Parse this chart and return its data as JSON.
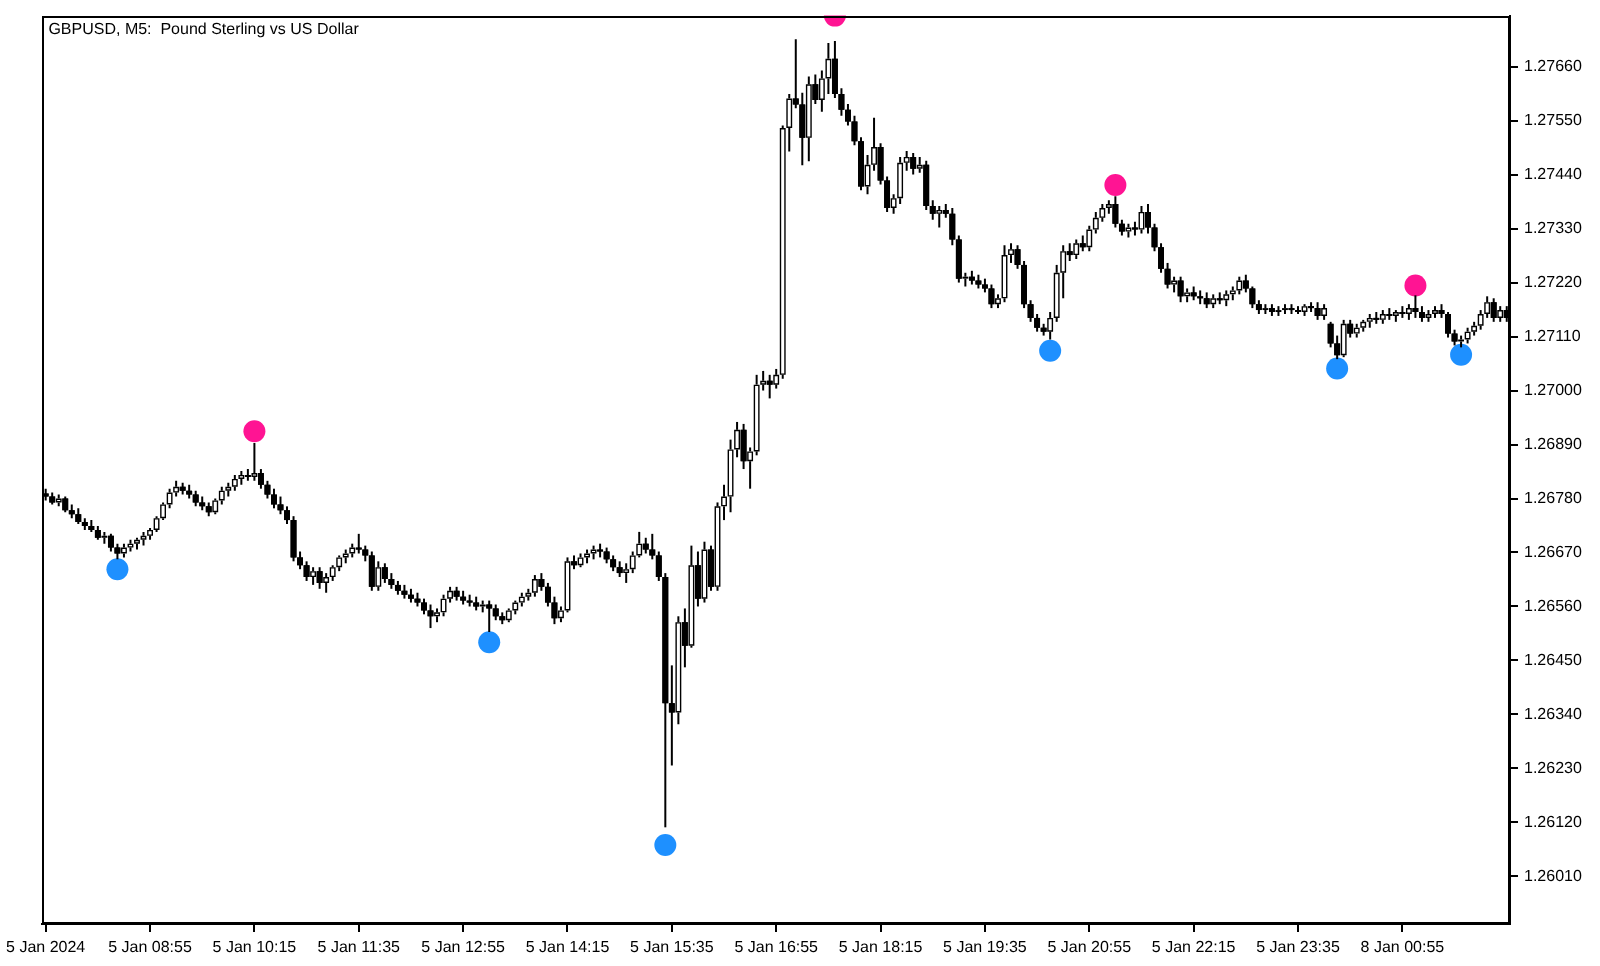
{
  "chart_data": {
    "type": "candlestick",
    "title": "GBPUSD, M5:  Pound Sterling vs US Dollar",
    "categories": [
      "5 Jan 2024",
      null,
      null,
      null,
      null,
      null,
      null,
      null,
      null,
      null,
      null,
      null,
      null,
      null,
      null,
      null,
      "5 Jan 08:55",
      null,
      null,
      null,
      null,
      null,
      null,
      null,
      null,
      null,
      null,
      null,
      null,
      null,
      null,
      null,
      "5 Jan 10:15",
      null,
      null,
      null,
      null,
      null,
      null,
      null,
      null,
      null,
      null,
      null,
      null,
      null,
      null,
      null,
      "5 Jan 11:35",
      null,
      null,
      null,
      null,
      null,
      null,
      null,
      null,
      null,
      null,
      null,
      null,
      null,
      null,
      null,
      "5 Jan 12:55",
      null,
      null,
      null,
      null,
      null,
      null,
      null,
      null,
      null,
      null,
      null,
      null,
      null,
      null,
      null,
      "5 Jan 14:15",
      null,
      null,
      null,
      null,
      null,
      null,
      null,
      null,
      null,
      null,
      null,
      null,
      null,
      null,
      null,
      "5 Jan 15:35",
      null,
      null,
      null,
      null,
      null,
      null,
      null,
      null,
      null,
      null,
      null,
      null,
      null,
      null,
      null,
      "5 Jan 16:55",
      null,
      null,
      null,
      null,
      null,
      null,
      null,
      null,
      null,
      null,
      null,
      null,
      null,
      null,
      null,
      "5 Jan 18:15",
      null,
      null,
      null,
      null,
      null,
      null,
      null,
      null,
      null,
      null,
      null,
      null,
      null,
      null,
      null,
      "5 Jan 19:35",
      null,
      null,
      null,
      null,
      null,
      null,
      null,
      null,
      null,
      null,
      null,
      null,
      null,
      null,
      null,
      "5 Jan 20:55",
      null,
      null,
      null,
      null,
      null,
      null,
      null,
      null,
      null,
      null,
      null,
      null,
      null,
      null,
      null,
      "5 Jan 22:15",
      null,
      null,
      null,
      null,
      null,
      null,
      null,
      null,
      null,
      null,
      null,
      null,
      null,
      null,
      null,
      "5 Jan 23:35",
      null,
      null,
      null,
      null,
      null,
      null,
      null,
      null,
      null,
      null,
      null,
      null,
      null,
      null,
      null,
      "8 Jan 00:55",
      null,
      null,
      null,
      null,
      null,
      null,
      null,
      null,
      null,
      null,
      null,
      null,
      null,
      null,
      null,
      null
    ],
    "ohlc": [
      [
        1.2679,
        1.268,
        1.26776,
        1.26784
      ],
      [
        1.26784,
        1.26792,
        1.26768,
        1.26772
      ],
      [
        1.26772,
        1.26788,
        1.26764,
        1.2678
      ],
      [
        1.2678,
        1.26784,
        1.26752,
        1.26756
      ],
      [
        1.26756,
        1.26768,
        1.2674,
        1.26748
      ],
      [
        1.26748,
        1.2676,
        1.26728,
        1.26732
      ],
      [
        1.26732,
        1.2674,
        1.26716,
        1.26724
      ],
      [
        1.26724,
        1.26736,
        1.26712,
        1.26716
      ],
      [
        1.26716,
        1.26724,
        1.26696,
        1.267
      ],
      [
        1.267,
        1.26712,
        1.26688,
        1.26704
      ],
      [
        1.26704,
        1.26708,
        1.26672,
        1.2668
      ],
      [
        1.2668,
        1.26688,
        1.26656,
        1.26668
      ],
      [
        1.26668,
        1.26688,
        1.2666,
        1.2668
      ],
      [
        1.2668,
        1.26696,
        1.26672,
        1.26688
      ],
      [
        1.26688,
        1.267,
        1.26676,
        1.26696
      ],
      [
        1.26696,
        1.26712,
        1.26684,
        1.26704
      ],
      [
        1.26704,
        1.2672,
        1.26696,
        1.26716
      ],
      [
        1.26716,
        1.26744,
        1.26712,
        1.2674
      ],
      [
        1.2674,
        1.26772,
        1.26736,
        1.26768
      ],
      [
        1.26768,
        1.268,
        1.2676,
        1.26792
      ],
      [
        1.26792,
        1.26816,
        1.26784,
        1.26804
      ],
      [
        1.26804,
        1.26812,
        1.26788,
        1.26796
      ],
      [
        1.26796,
        1.26808,
        1.2678,
        1.26788
      ],
      [
        1.26788,
        1.26796,
        1.26764,
        1.26772
      ],
      [
        1.26772,
        1.26784,
        1.26756,
        1.26764
      ],
      [
        1.26764,
        1.26772,
        1.26744,
        1.26752
      ],
      [
        1.26752,
        1.2678,
        1.26748,
        1.26776
      ],
      [
        1.26776,
        1.26804,
        1.26768,
        1.26796
      ],
      [
        1.26796,
        1.26812,
        1.26784,
        1.26804
      ],
      [
        1.26804,
        1.26828,
        1.26796,
        1.2682
      ],
      [
        1.2682,
        1.26836,
        1.26808,
        1.26828
      ],
      [
        1.26828,
        1.2684,
        1.26816,
        1.26824
      ],
      [
        1.26824,
        1.26893,
        1.26816,
        1.26832
      ],
      [
        1.26832,
        1.2684,
        1.268,
        1.26808
      ],
      [
        1.26808,
        1.26816,
        1.2678,
        1.26788
      ],
      [
        1.26788,
        1.268,
        1.2676,
        1.26768
      ],
      [
        1.26768,
        1.26784,
        1.26748,
        1.26756
      ],
      [
        1.26756,
        1.26764,
        1.26728,
        1.26736
      ],
      [
        1.26736,
        1.26744,
        1.26652,
        1.2666
      ],
      [
        1.2666,
        1.26672,
        1.26636,
        1.26644
      ],
      [
        1.26644,
        1.26652,
        1.26612,
        1.2662
      ],
      [
        1.2662,
        1.2664,
        1.26604,
        1.26632
      ],
      [
        1.26632,
        1.2664,
        1.26596,
        1.26608
      ],
      [
        1.26608,
        1.26628,
        1.26588,
        1.2662
      ],
      [
        1.2662,
        1.26644,
        1.26612,
        1.2664
      ],
      [
        1.2664,
        1.26664,
        1.26632,
        1.2666
      ],
      [
        1.2666,
        1.26676,
        1.26648,
        1.26668
      ],
      [
        1.26668,
        1.26688,
        1.2666,
        1.2668
      ],
      [
        1.2668,
        1.26708,
        1.26668,
        1.26676
      ],
      [
        1.26676,
        1.26684,
        1.26652,
        1.26664
      ],
      [
        1.26664,
        1.26672,
        1.26592,
        1.266
      ],
      [
        1.266,
        1.26652,
        1.26592,
        1.2664
      ],
      [
        1.2664,
        1.26648,
        1.26608,
        1.26616
      ],
      [
        1.26616,
        1.26628,
        1.26596,
        1.26604
      ],
      [
        1.26604,
        1.26612,
        1.26584,
        1.26592
      ],
      [
        1.26592,
        1.26604,
        1.26576,
        1.26584
      ],
      [
        1.26584,
        1.26596,
        1.26568,
        1.26576
      ],
      [
        1.26576,
        1.26588,
        1.2656,
        1.26568
      ],
      [
        1.26568,
        1.26576,
        1.26544,
        1.26552
      ],
      [
        1.26552,
        1.26564,
        1.26516,
        1.2654
      ],
      [
        1.2654,
        1.26556,
        1.26528,
        1.26548
      ],
      [
        1.26548,
        1.26584,
        1.2654,
        1.26576
      ],
      [
        1.26576,
        1.266,
        1.26568,
        1.26592
      ],
      [
        1.26592,
        1.266,
        1.26572,
        1.2658
      ],
      [
        1.2658,
        1.26592,
        1.26564,
        1.26572
      ],
      [
        1.26572,
        1.26584,
        1.2656,
        1.26568
      ],
      [
        1.26568,
        1.2658,
        1.26552,
        1.2656
      ],
      [
        1.2656,
        1.26572,
        1.26548,
        1.26564
      ],
      [
        1.26564,
        1.26572,
        1.26508,
        1.26556
      ],
      [
        1.26556,
        1.26564,
        1.26532,
        1.2654
      ],
      [
        1.2654,
        1.26548,
        1.26524,
        1.26532
      ],
      [
        1.26532,
        1.26556,
        1.26528,
        1.26552
      ],
      [
        1.26552,
        1.26572,
        1.26544,
        1.26568
      ],
      [
        1.26568,
        1.26588,
        1.2656,
        1.2658
      ],
      [
        1.2658,
        1.26596,
        1.26572,
        1.26588
      ],
      [
        1.26588,
        1.26624,
        1.2658,
        1.26616
      ],
      [
        1.26616,
        1.26628,
        1.26592,
        1.266
      ],
      [
        1.266,
        1.26608,
        1.2656,
        1.26568
      ],
      [
        1.26568,
        1.2658,
        1.26524,
        1.26536
      ],
      [
        1.26536,
        1.2656,
        1.26528,
        1.26552
      ],
      [
        1.26552,
        1.2666,
        1.26548,
        1.26652
      ],
      [
        1.26652,
        1.26664,
        1.26636,
        1.26644
      ],
      [
        1.26644,
        1.26668,
        1.2664,
        1.2666
      ],
      [
        1.2666,
        1.26676,
        1.26648,
        1.26668
      ],
      [
        1.26668,
        1.26684,
        1.26656,
        1.26676
      ],
      [
        1.26676,
        1.26688,
        1.2666,
        1.26672
      ],
      [
        1.26672,
        1.2668,
        1.26648,
        1.26656
      ],
      [
        1.26656,
        1.26664,
        1.26632,
        1.2664
      ],
      [
        1.2664,
        1.26652,
        1.2662,
        1.26628
      ],
      [
        1.26628,
        1.26648,
        1.26608,
        1.26636
      ],
      [
        1.26636,
        1.26672,
        1.26628,
        1.26664
      ],
      [
        1.26664,
        1.26712,
        1.2666,
        1.26688
      ],
      [
        1.26688,
        1.267,
        1.26668,
        1.26676
      ],
      [
        1.26676,
        1.26708,
        1.26656,
        1.26664
      ],
      [
        1.26664,
        1.26672,
        1.26612,
        1.2662
      ],
      [
        1.2662,
        1.26628,
        1.2611,
        1.26363
      ],
      [
        1.26363,
        1.2644,
        1.26236,
        1.26344
      ],
      [
        1.26344,
        1.2654,
        1.2632,
        1.26528
      ],
      [
        1.26528,
        1.26556,
        1.26436,
        1.2648
      ],
      [
        1.2648,
        1.26684,
        1.26476,
        1.26644
      ],
      [
        1.26644,
        1.26672,
        1.2656,
        1.26576
      ],
      [
        1.26576,
        1.26692,
        1.26568,
        1.26676
      ],
      [
        1.26676,
        1.26684,
        1.26592,
        1.266
      ],
      [
        1.266,
        1.26772,
        1.26592,
        1.26764
      ],
      [
        1.26764,
        1.26808,
        1.26736,
        1.26784
      ],
      [
        1.26784,
        1.269,
        1.26752,
        1.2688
      ],
      [
        1.2688,
        1.26936,
        1.26864,
        1.2692
      ],
      [
        1.2692,
        1.26932,
        1.2684,
        1.26856
      ],
      [
        1.26856,
        1.26884,
        1.268,
        1.26876
      ],
      [
        1.26876,
        1.27032,
        1.26868,
        1.27012
      ],
      [
        1.27012,
        1.2704,
        1.27,
        1.2702
      ],
      [
        1.2702,
        1.27032,
        1.26984,
        1.27012
      ],
      [
        1.27012,
        1.27044,
        1.27004,
        1.27032
      ],
      [
        1.27032,
        1.2754,
        1.27024,
        1.27535
      ],
      [
        1.27535,
        1.27604,
        1.27487,
        1.27595
      ],
      [
        1.27595,
        1.27716,
        1.27575,
        1.27583
      ],
      [
        1.27583,
        1.27607,
        1.27459,
        1.27515
      ],
      [
        1.27515,
        1.2764,
        1.27467,
        1.27624
      ],
      [
        1.27624,
        1.27644,
        1.27584,
        1.27592
      ],
      [
        1.27592,
        1.27652,
        1.27568,
        1.27636
      ],
      [
        1.27636,
        1.27708,
        1.27604,
        1.27676
      ],
      [
        1.27676,
        1.27712,
        1.27596,
        1.27604
      ],
      [
        1.27604,
        1.27616,
        1.2756,
        1.27572
      ],
      [
        1.27572,
        1.27584,
        1.2754,
        1.27548
      ],
      [
        1.27548,
        1.2756,
        1.275,
        1.27508
      ],
      [
        1.27508,
        1.27516,
        1.27408,
        1.27416
      ],
      [
        1.27416,
        1.2748,
        1.274,
        1.2746
      ],
      [
        1.2746,
        1.27556,
        1.27448,
        1.27496
      ],
      [
        1.27496,
        1.27504,
        1.2742,
        1.27428
      ],
      [
        1.27428,
        1.27436,
        1.27364,
        1.27372
      ],
      [
        1.27372,
        1.274,
        1.2736,
        1.27392
      ],
      [
        1.27392,
        1.27476,
        1.2738,
        1.27464
      ],
      [
        1.27464,
        1.27488,
        1.27448,
        1.27476
      ],
      [
        1.27476,
        1.27484,
        1.2744,
        1.27452
      ],
      [
        1.27452,
        1.27476,
        1.27444,
        1.2746
      ],
      [
        1.2746,
        1.27468,
        1.27368,
        1.27376
      ],
      [
        1.27376,
        1.27388,
        1.27348,
        1.2736
      ],
      [
        1.2736,
        1.27376,
        1.27332,
        1.27368
      ],
      [
        1.27368,
        1.2738,
        1.27352,
        1.2736
      ],
      [
        1.2736,
        1.27372,
        1.27296,
        1.27308
      ],
      [
        1.27308,
        1.27316,
        1.2722,
        1.27228
      ],
      [
        1.27228,
        1.2724,
        1.27212,
        1.27232
      ],
      [
        1.27232,
        1.27244,
        1.27216,
        1.27224
      ],
      [
        1.27224,
        1.27236,
        1.27208,
        1.27216
      ],
      [
        1.27216,
        1.27228,
        1.272,
        1.27208
      ],
      [
        1.27208,
        1.27216,
        1.27168,
        1.27176
      ],
      [
        1.27176,
        1.27196,
        1.27168,
        1.27188
      ],
      [
        1.27188,
        1.27296,
        1.2718,
        1.27276
      ],
      [
        1.27276,
        1.273,
        1.2726,
        1.27288
      ],
      [
        1.27288,
        1.27296,
        1.27248,
        1.27256
      ],
      [
        1.27256,
        1.27264,
        1.27168,
        1.27176
      ],
      [
        1.27176,
        1.27184,
        1.2714,
        1.27148
      ],
      [
        1.27148,
        1.27156,
        1.2712,
        1.27128
      ],
      [
        1.27128,
        1.27136,
        1.27112,
        1.2712
      ],
      [
        1.2712,
        1.2716,
        1.27104,
        1.27148
      ],
      [
        1.27148,
        1.27256,
        1.2714,
        1.2724
      ],
      [
        1.2724,
        1.27296,
        1.27188,
        1.27284
      ],
      [
        1.27284,
        1.273,
        1.27264,
        1.27276
      ],
      [
        1.27276,
        1.27308,
        1.27268,
        1.273
      ],
      [
        1.273,
        1.27316,
        1.27284,
        1.27292
      ],
      [
        1.27292,
        1.27336,
        1.27284,
        1.27328
      ],
      [
        1.27328,
        1.27364,
        1.2732,
        1.27352
      ],
      [
        1.27352,
        1.2738,
        1.27344,
        1.27372
      ],
      [
        1.27372,
        1.27388,
        1.2736,
        1.2738
      ],
      [
        1.2738,
        1.27396,
        1.27332,
        1.2734
      ],
      [
        1.2734,
        1.27348,
        1.27316,
        1.27324
      ],
      [
        1.27324,
        1.2734,
        1.27312,
        1.27332
      ],
      [
        1.27332,
        1.27344,
        1.27316,
        1.27328
      ],
      [
        1.27328,
        1.27376,
        1.2732,
        1.27364
      ],
      [
        1.27364,
        1.2738,
        1.2732,
        1.27332
      ],
      [
        1.27332,
        1.2734,
        1.27284,
        1.27292
      ],
      [
        1.27292,
        1.273,
        1.2724,
        1.27248
      ],
      [
        1.27248,
        1.2726,
        1.27208,
        1.27216
      ],
      [
        1.27216,
        1.27232,
        1.272,
        1.27224
      ],
      [
        1.27224,
        1.27232,
        1.2718,
        1.27192
      ],
      [
        1.27192,
        1.27208,
        1.2718,
        1.272
      ],
      [
        1.272,
        1.27212,
        1.27184,
        1.27192
      ],
      [
        1.27192,
        1.27204,
        1.27176,
        1.27188
      ],
      [
        1.27188,
        1.272,
        1.27168,
        1.27176
      ],
      [
        1.27176,
        1.27196,
        1.27168,
        1.27188
      ],
      [
        1.27188,
        1.272,
        1.27176,
        1.27184
      ],
      [
        1.27184,
        1.27204,
        1.27172,
        1.27196
      ],
      [
        1.27196,
        1.27212,
        1.27184,
        1.27204
      ],
      [
        1.27204,
        1.27232,
        1.27196,
        1.27224
      ],
      [
        1.27224,
        1.27236,
        1.272,
        1.27208
      ],
      [
        1.27208,
        1.27212,
        1.27168,
        1.27176
      ],
      [
        1.27176,
        1.27184,
        1.27156,
        1.27164
      ],
      [
        1.27164,
        1.27176,
        1.27156,
        1.27168
      ],
      [
        1.27168,
        1.27176,
        1.27152,
        1.2716
      ],
      [
        1.2716,
        1.27172,
        1.27152,
        1.27164
      ],
      [
        1.27164,
        1.27176,
        1.27156,
        1.27168
      ],
      [
        1.27168,
        1.27176,
        1.27156,
        1.27164
      ],
      [
        1.27164,
        1.27172,
        1.27156,
        1.2716
      ],
      [
        1.2716,
        1.27176,
        1.27152,
        1.27172
      ],
      [
        1.27172,
        1.2718,
        1.2716,
        1.27168
      ],
      [
        1.27168,
        1.2718,
        1.27144,
        1.27152
      ],
      [
        1.27152,
        1.27176,
        1.27144,
        1.27168
      ],
      [
        1.27136,
        1.2714,
        1.27088,
        1.27096
      ],
      [
        1.27096,
        1.27112,
        1.27064,
        1.27072
      ],
      [
        1.27072,
        1.27144,
        1.27068,
        1.27136
      ],
      [
        1.27136,
        1.27144,
        1.27108,
        1.27116
      ],
      [
        1.27116,
        1.27136,
        1.27108,
        1.27128
      ],
      [
        1.27128,
        1.27144,
        1.2712,
        1.2714
      ],
      [
        1.2714,
        1.27156,
        1.27128,
        1.27148
      ],
      [
        1.27148,
        1.2716,
        1.27136,
        1.27144
      ],
      [
        1.27144,
        1.27164,
        1.27136,
        1.27156
      ],
      [
        1.27156,
        1.27168,
        1.27144,
        1.27152
      ],
      [
        1.27152,
        1.27164,
        1.2714,
        1.2716
      ],
      [
        1.2716,
        1.27172,
        1.27148,
        1.27156
      ],
      [
        1.27156,
        1.27176,
        1.27144,
        1.27168
      ],
      [
        1.27168,
        1.27194,
        1.27148,
        1.2716
      ],
      [
        1.2716,
        1.27172,
        1.2714,
        1.27148
      ],
      [
        1.27148,
        1.27164,
        1.2714,
        1.27156
      ],
      [
        1.27156,
        1.27172,
        1.27148,
        1.27164
      ],
      [
        1.27164,
        1.27176,
        1.27148,
        1.27156
      ],
      [
        1.27156,
        1.2716,
        1.27108,
        1.27116
      ],
      [
        1.27116,
        1.27124,
        1.27092,
        1.271
      ],
      [
        1.271,
        1.27112,
        1.27088,
        1.27104
      ],
      [
        1.27104,
        1.27128,
        1.27096,
        1.2712
      ],
      [
        1.2712,
        1.2714,
        1.27112,
        1.27132
      ],
      [
        1.27132,
        1.27164,
        1.27124,
        1.27156
      ],
      [
        1.27156,
        1.27192,
        1.27148,
        1.2718
      ],
      [
        1.2718,
        1.27188,
        1.2714,
        1.27148
      ],
      [
        1.27148,
        1.27172,
        1.2714,
        1.27164
      ],
      [
        1.27164,
        1.27172,
        1.2714,
        1.27148
      ]
    ],
    "color": "#000000",
    "colors": [
      "#000000",
      "#000000",
      "#ffffff",
      "#000000",
      "#000000",
      "#000000",
      "#000000",
      "#000000",
      "#000000",
      "#ffffff",
      "#000000",
      "#000000",
      "#ffffff",
      "#ffffff",
      "#ffffff",
      "#ffffff",
      "#ffffff",
      "#ffffff",
      "#ffffff",
      "#ffffff",
      "#ffffff",
      "#000000",
      "#000000",
      "#000000",
      "#000000",
      "#000000",
      "#ffffff",
      "#ffffff",
      "#ffffff",
      "#ffffff",
      "#ffffff",
      "#000000",
      "#ffffff",
      "#000000",
      "#000000",
      "#000000",
      "#000000",
      "#000000",
      "#000000",
      "#000000",
      "#000000",
      "#ffffff",
      "#000000",
      "#ffffff",
      "#ffffff",
      "#ffffff",
      "#ffffff",
      "#ffffff",
      "#000000",
      "#000000",
      "#000000",
      "#ffffff",
      "#000000",
      "#000000",
      "#000000",
      "#000000",
      "#000000",
      "#000000",
      "#000000",
      "#000000",
      "#ffffff",
      "#ffffff",
      "#ffffff",
      "#000000",
      "#000000",
      "#000000",
      "#000000",
      "#ffffff",
      "#000000",
      "#000000",
      "#000000",
      "#ffffff",
      "#ffffff",
      "#ffffff",
      "#ffffff",
      "#ffffff",
      "#000000",
      "#000000",
      "#000000",
      "#ffffff",
      "#ffffff",
      "#000000",
      "#ffffff",
      "#ffffff",
      "#ffffff",
      "#000000",
      "#000000",
      "#000000",
      "#000000",
      "#ffffff",
      "#ffffff",
      "#ffffff",
      "#000000",
      "#000000",
      "#000000",
      "#000000",
      "#000000",
      "#ffffff",
      "#000000",
      "#ffffff",
      "#000000",
      "#ffffff",
      "#000000",
      "#ffffff",
      "#ffffff",
      "#ffffff",
      "#ffffff",
      "#000000",
      "#ffffff",
      "#ffffff",
      "#ffffff",
      "#000000",
      "#ffffff",
      "#ffffff",
      "#ffffff",
      "#000000",
      "#000000",
      "#ffffff",
      "#000000",
      "#ffffff",
      "#ffffff",
      "#000000",
      "#000000",
      "#000000",
      "#000000",
      "#000000",
      "#ffffff",
      "#ffffff",
      "#000000",
      "#000000",
      "#ffffff",
      "#ffffff",
      "#ffffff",
      "#000000",
      "#ffffff",
      "#000000",
      "#000000",
      "#ffffff",
      "#000000",
      "#000000",
      "#000000",
      "#ffffff",
      "#000000",
      "#000000",
      "#000000",
      "#000000",
      "#ffffff",
      "#ffffff",
      "#ffffff",
      "#000000",
      "#000000",
      "#000000",
      "#000000",
      "#000000",
      "#ffffff",
      "#ffffff",
      "#ffffff",
      "#000000",
      "#ffffff",
      "#000000",
      "#ffffff",
      "#ffffff",
      "#ffffff",
      "#ffffff",
      "#000000",
      "#000000",
      "#ffffff",
      "#000000",
      "#ffffff",
      "#000000",
      "#000000",
      "#000000",
      "#000000",
      "#ffffff",
      "#000000",
      "#ffffff",
      "#000000",
      "#000000",
      "#000000",
      "#ffffff",
      "#000000",
      "#ffffff",
      "#ffffff",
      "#ffffff",
      "#000000",
      "#000000",
      "#000000",
      "#ffffff",
      "#000000",
      "#ffffff",
      "#ffffff",
      "#000000",
      "#000000",
      "#ffffff",
      "#000000",
      "#000000",
      "#ffffff",
      "#000000",
      "#000000",
      "#ffffff",
      "#000000",
      "#ffffff",
      "#ffffff",
      "#ffffff",
      "#000000",
      "#ffffff",
      "#000000",
      "#ffffff",
      "#000000",
      "#ffffff",
      "#000000",
      "#000000",
      "#ffffff",
      "#ffffff",
      "#000000",
      "#000000",
      "#000000",
      "#ffffff",
      "#ffffff",
      "#ffffff",
      "#ffffff",
      "#ffffff",
      "#000000",
      "#ffffff",
      "#000000"
    ],
    "series": [
      {
        "type": "scatter",
        "color": "#ff1493",
        "values": [
          null,
          null,
          null,
          null,
          null,
          null,
          null,
          null,
          null,
          null,
          null,
          null,
          null,
          null,
          null,
          null,
          null,
          null,
          null,
          null,
          null,
          null,
          null,
          null,
          null,
          null,
          null,
          null,
          null,
          null,
          null,
          null,
          1.26917,
          null,
          null,
          null,
          null,
          null,
          null,
          null,
          null,
          null,
          null,
          null,
          null,
          null,
          null,
          null,
          null,
          null,
          null,
          null,
          null,
          null,
          null,
          null,
          null,
          null,
          null,
          null,
          null,
          null,
          null,
          null,
          null,
          null,
          null,
          null,
          null,
          null,
          null,
          null,
          null,
          null,
          null,
          null,
          null,
          null,
          null,
          null,
          null,
          null,
          null,
          null,
          null,
          null,
          null,
          null,
          null,
          null,
          null,
          null,
          null,
          null,
          null,
          null,
          null,
          null,
          null,
          null,
          null,
          null,
          null,
          null,
          null,
          null,
          null,
          null,
          null,
          null,
          null,
          null,
          null,
          null,
          null,
          null,
          null,
          null,
          null,
          null,
          null,
          1.27764,
          null,
          null,
          null,
          null,
          null,
          null,
          null,
          null,
          null,
          null,
          null,
          null,
          null,
          null,
          null,
          null,
          null,
          null,
          null,
          null,
          null,
          null,
          null,
          null,
          null,
          null,
          null,
          null,
          null,
          null,
          null,
          null,
          null,
          null,
          null,
          null,
          null,
          null,
          null,
          null,
          null,
          null,
          1.27419,
          null,
          null,
          null,
          null,
          null,
          null,
          null,
          null,
          null,
          null,
          null,
          null,
          null,
          null,
          null,
          null,
          null,
          null,
          null,
          null,
          null,
          null,
          null,
          null,
          null,
          null,
          null,
          null,
          null,
          null,
          null,
          null,
          null,
          null,
          null,
          null,
          null,
          null,
          null,
          null,
          null,
          null,
          null,
          null,
          null,
          1.27214,
          null,
          null,
          null,
          null,
          null,
          null,
          null,
          null,
          null,
          null,
          null,
          null,
          null,
          null
        ]
      },
      {
        "type": "scatter",
        "color": "#1e90ff",
        "values": [
          null,
          null,
          null,
          null,
          null,
          null,
          null,
          null,
          null,
          null,
          null,
          1.26636,
          null,
          null,
          null,
          null,
          null,
          null,
          null,
          null,
          null,
          null,
          null,
          null,
          null,
          null,
          null,
          null,
          null,
          null,
          null,
          null,
          null,
          null,
          null,
          null,
          null,
          null,
          null,
          null,
          null,
          null,
          null,
          null,
          null,
          null,
          null,
          null,
          null,
          null,
          null,
          null,
          null,
          null,
          null,
          null,
          null,
          null,
          null,
          null,
          null,
          null,
          null,
          null,
          null,
          null,
          null,
          null,
          1.26487,
          null,
          null,
          null,
          null,
          null,
          null,
          null,
          null,
          null,
          null,
          null,
          null,
          null,
          null,
          null,
          null,
          null,
          null,
          null,
          null,
          null,
          null,
          null,
          null,
          null,
          null,
          1.26074,
          null,
          null,
          null,
          null,
          null,
          null,
          null,
          null,
          null,
          null,
          null,
          null,
          null,
          null,
          null,
          null,
          null,
          null,
          null,
          null,
          null,
          null,
          null,
          null,
          null,
          null,
          null,
          null,
          null,
          null,
          null,
          null,
          null,
          null,
          null,
          null,
          null,
          null,
          null,
          null,
          null,
          null,
          null,
          null,
          null,
          null,
          null,
          null,
          null,
          null,
          null,
          null,
          null,
          null,
          null,
          null,
          null,
          null,
          1.27081,
          null,
          null,
          null,
          null,
          null,
          null,
          null,
          null,
          null,
          null,
          null,
          null,
          null,
          null,
          null,
          null,
          null,
          null,
          null,
          null,
          null,
          null,
          null,
          null,
          null,
          null,
          null,
          null,
          null,
          null,
          null,
          null,
          null,
          null,
          null,
          null,
          null,
          null,
          null,
          null,
          null,
          null,
          null,
          1.27045,
          null,
          null,
          null,
          null,
          null,
          null,
          null,
          null,
          null,
          null,
          null,
          null,
          null,
          null,
          null,
          null,
          null,
          null,
          1.27073,
          null,
          null,
          null,
          null,
          null,
          null,
          null
        ]
      }
    ],
    "marker": "circle",
    "ylim": [
      1.25913,
      1.27764
    ],
    "yticks": [
      {
        "value": 1.2601,
        "label": "1.26010"
      },
      {
        "value": 1.2612,
        "label": "1.26120"
      },
      {
        "value": 1.2623,
        "label": "1.26230"
      },
      {
        "value": 1.2634,
        "label": "1.26340"
      },
      {
        "value": 1.2645,
        "label": "1.26450"
      },
      {
        "value": 1.2656,
        "label": "1.26560"
      },
      {
        "value": 1.2667,
        "label": "1.26670"
      },
      {
        "value": 1.2678,
        "label": "1.26780"
      },
      {
        "value": 1.2689,
        "label": "1.26890"
      },
      {
        "value": 1.27,
        "label": "1.27000"
      },
      {
        "value": 1.2711,
        "label": "1.27110"
      },
      {
        "value": 1.2722,
        "label": "1.27220"
      },
      {
        "value": 1.2733,
        "label": "1.27330"
      },
      {
        "value": 1.2744,
        "label": "1.27440"
      },
      {
        "value": 1.2755,
        "label": "1.27550"
      },
      {
        "value": 1.2766,
        "label": "1.27660"
      }
    ]
  }
}
